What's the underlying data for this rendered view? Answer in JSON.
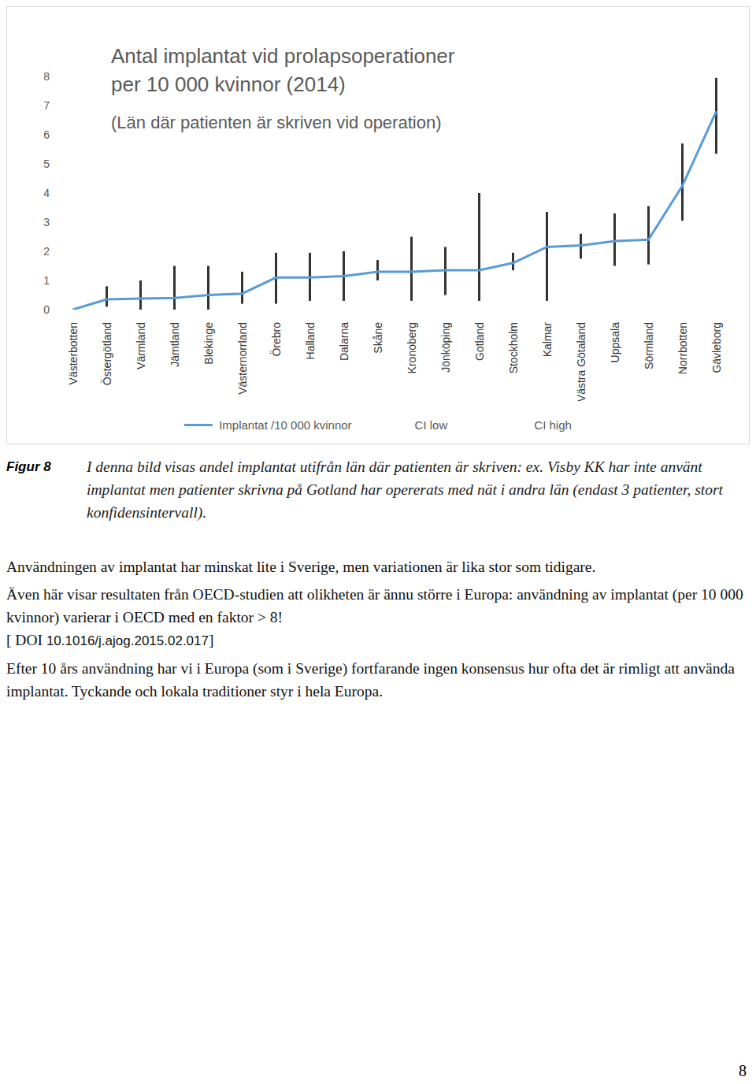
{
  "chart_data": {
    "type": "line",
    "title": [
      "Antal implantat vid prolapsoperationer",
      "per 10 000 kvinnor (2014)"
    ],
    "subtitle": "(Län där patienten är skriven vid operation)",
    "categories": [
      "Västerbotten",
      "Östergötland",
      "Värmland",
      "Jämtland",
      "Blekinge",
      "Västernorrland",
      "Örebro",
      "Halland",
      "Dalarna",
      "Skåne",
      "Kronoberg",
      "Jönköping",
      "Gotland",
      "Stockholm",
      "Kalmar",
      "Västra Götaland",
      "Uppsala",
      "Sörmland",
      "Norrbotten",
      "Gävleborg"
    ],
    "series": [
      {
        "name": "Implantat /10 000 kvinnor",
        "color": "#5b9bd5",
        "type": "line",
        "values": [
          0.0,
          0.35,
          0.38,
          0.4,
          0.5,
          0.55,
          1.1,
          1.1,
          1.15,
          1.3,
          1.3,
          1.35,
          1.35,
          1.6,
          2.15,
          2.2,
          2.35,
          2.4,
          4.25,
          6.8
        ]
      }
    ],
    "ci_low": {
      "name": "CI low",
      "color": "#333333",
      "values": [
        null,
        0.1,
        0.0,
        0.0,
        0.0,
        0.2,
        0.2,
        0.3,
        0.3,
        1.0,
        0.3,
        0.5,
        0.3,
        1.35,
        0.3,
        1.75,
        1.5,
        1.55,
        3.05,
        5.35
      ]
    },
    "ci_high": {
      "name": "CI high",
      "color": "#333333",
      "values": [
        null,
        0.8,
        1.0,
        1.5,
        1.5,
        1.3,
        1.95,
        1.95,
        2.0,
        1.7,
        2.5,
        2.15,
        4.0,
        1.95,
        3.35,
        2.6,
        3.3,
        3.55,
        5.7,
        7.95
      ]
    },
    "ylim": [
      0,
      8
    ],
    "yticks": [
      0,
      1,
      2,
      3,
      4,
      5,
      6,
      7,
      8
    ],
    "grid": false,
    "legend": "bottom"
  },
  "document": {
    "caption": {
      "label": "Figur 8",
      "text": "I denna bild visas andel implantat utifrån län där patienten är skriven: ex. Visby KK har inte använt implantat men patienter skrivna på Gotland har opererats med nät i andra län (endast 3 patienter, stort konfidensintervall)."
    },
    "paragraphs": [
      {
        "text": "Användningen av implantat har minskat lite i Sverige, men variationen är lika stor som tidigare."
      },
      {
        "text": "Även här visar resultaten från OECD-studien att olikheten är ännu större i Europa: användning av implantat  (per 10 000 kvinnor) varierar i OECD med en faktor > 8!",
        "doi_prefix": "[ DOI",
        "doi": "10.1016/j.ajog.2015.02.017",
        "doi_suffix": "]"
      },
      {
        "text": "Efter 10 års användning har vi i Europa (som i Sverige) fortfarande ingen konsensus hur ofta det är rimligt att använda implantat. Tyckande och lokala traditioner styr i hela Europa."
      }
    ],
    "page_number": "8"
  }
}
